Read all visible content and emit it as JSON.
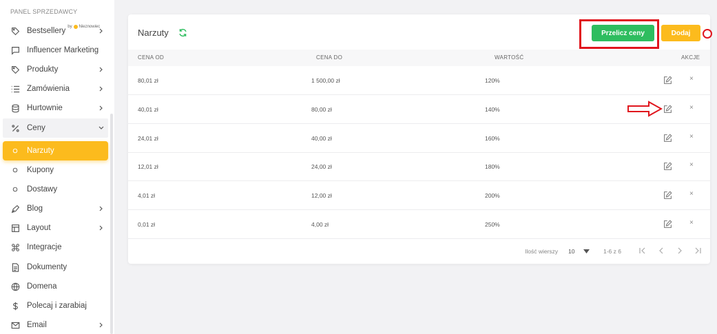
{
  "sidebar": {
    "panel_title": "PANEL SPRZEDAWCY",
    "bestseller_by": "by",
    "bestseller_brand": "Nieznowiec",
    "items": [
      {
        "label": "Bestsellery",
        "icon": "tag-icon"
      },
      {
        "label": "Influencer Marketing",
        "icon": "chat-icon"
      },
      {
        "label": "Produkty",
        "icon": "tag-icon"
      },
      {
        "label": "Zamówienia",
        "icon": "list-icon"
      },
      {
        "label": "Hurtownie",
        "icon": "database-icon"
      },
      {
        "label": "Ceny",
        "icon": "percent-icon"
      },
      {
        "label": "Narzuty",
        "icon": "circle-icon"
      },
      {
        "label": "Kupony",
        "icon": "circle-icon"
      },
      {
        "label": "Dostawy",
        "icon": "circle-icon"
      },
      {
        "label": "Blog",
        "icon": "pen-icon"
      },
      {
        "label": "Layout",
        "icon": "layout-icon"
      },
      {
        "label": "Integracje",
        "icon": "command-icon"
      },
      {
        "label": "Dokumenty",
        "icon": "document-icon"
      },
      {
        "label": "Domena",
        "icon": "globe-icon"
      },
      {
        "label": "Polecaj i zarabiaj",
        "icon": "dollar-icon"
      },
      {
        "label": "Email",
        "icon": "mail-icon"
      }
    ]
  },
  "main": {
    "title": "Narzuty",
    "recalc_label": "Przelicz ceny",
    "add_label": "Dodaj",
    "columns": [
      "CENA OD",
      "CENA DO",
      "WARTOŚĆ",
      "AKCJE"
    ],
    "rows": [
      {
        "from": "80,01 zł",
        "to": "1 500,00 zł",
        "value": "120%"
      },
      {
        "from": "40,01 zł",
        "to": "80,00 zł",
        "value": "140%"
      },
      {
        "from": "24,01 zł",
        "to": "40,00 zł",
        "value": "160%"
      },
      {
        "from": "12,01 zł",
        "to": "24,00 zł",
        "value": "180%"
      },
      {
        "from": "4,01 zł",
        "to": "12,00 zł",
        "value": "200%"
      },
      {
        "from": "0,01 zł",
        "to": "4,00 zł",
        "value": "250%"
      }
    ],
    "delete_glyph": "×",
    "pagination": {
      "rows_per_page_label": "Ilość wierszy",
      "rows_per_page": "10",
      "range": "1-6 z 6"
    }
  },
  "colors": {
    "accent": "#fcbb1d",
    "success": "#2ebd5f",
    "highlight": "#e0151d"
  }
}
